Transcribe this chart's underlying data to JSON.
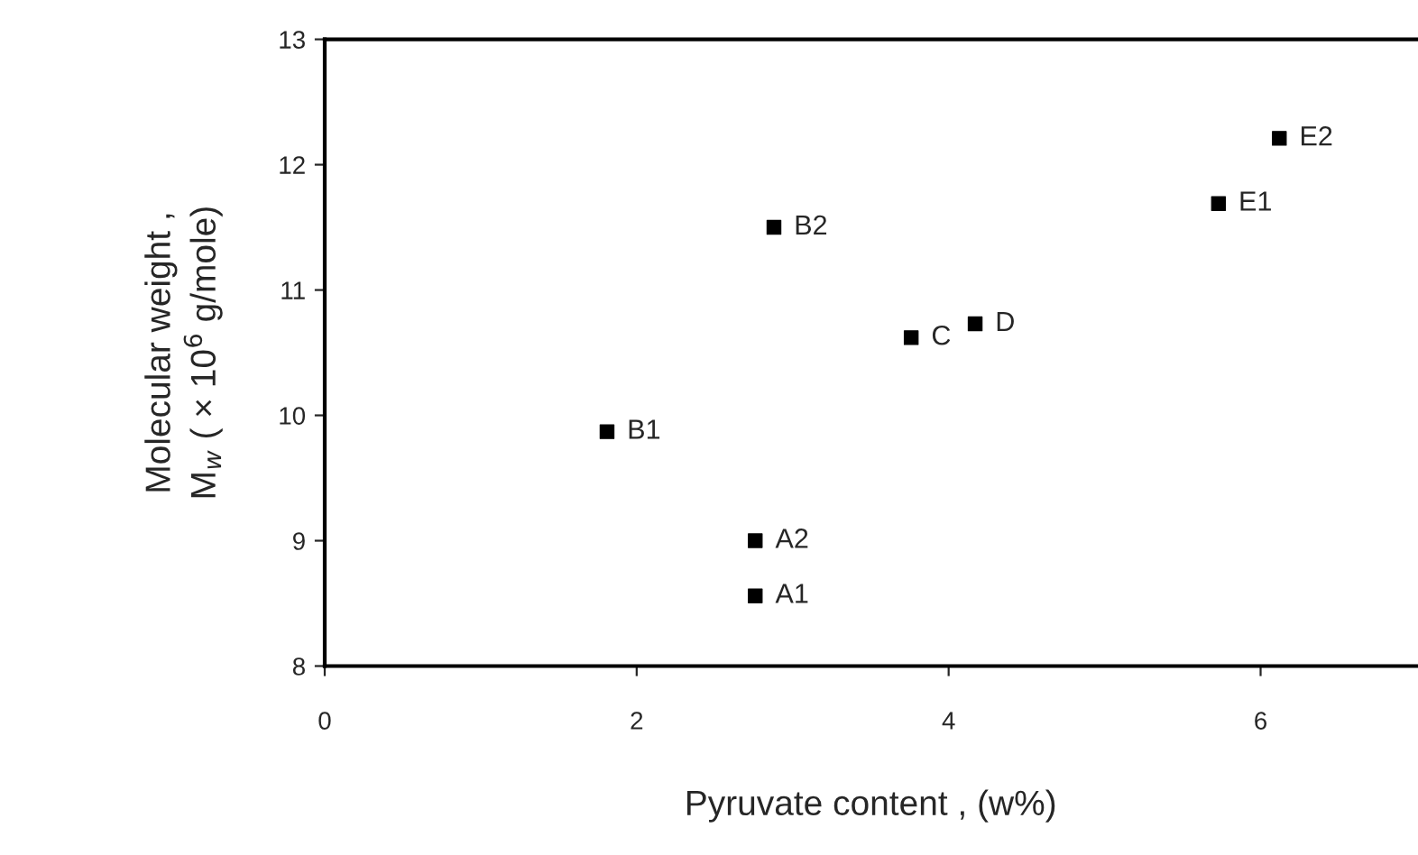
{
  "chart_data": {
    "type": "scatter",
    "xlabel": "Pyruvate content , (w%)",
    "ylabel": "Molecular weight ,\nM$_{w}$ ( × 10$^{6}$ g/mole)",
    "x": [
      1.81,
      2.88,
      2.76,
      2.76,
      3.76,
      4.17,
      5.73,
      6.12
    ],
    "series": [
      {
        "color": "#000000",
        "values": [
          9.87,
          11.5,
          9.0,
          8.56,
          10.62,
          10.73,
          11.69,
          12.21
        ]
      }
    ],
    "marker": "square",
    "grid": false,
    "legend": false,
    "xlim": [
      0,
      7
    ],
    "xticks": [
      0,
      2,
      4,
      6
    ],
    "ylim": [
      8,
      13
    ],
    "yticks": [
      8,
      9,
      10,
      11,
      12,
      13
    ],
    "annotations": [
      {
        "text": "B1",
        "x": 1.81,
        "y": 9.87
      },
      {
        "text": "B2",
        "x": 2.88,
        "y": 11.5
      },
      {
        "text": "A2",
        "x": 2.76,
        "y": 9.0
      },
      {
        "text": "A1",
        "x": 2.76,
        "y": 8.56
      },
      {
        "text": "C",
        "x": 3.76,
        "y": 10.62
      },
      {
        "text": "D",
        "x": 4.17,
        "y": 10.73
      },
      {
        "text": "E1",
        "x": 5.73,
        "y": 11.69
      },
      {
        "text": "E2",
        "x": 6.12,
        "y": 12.21
      }
    ]
  }
}
